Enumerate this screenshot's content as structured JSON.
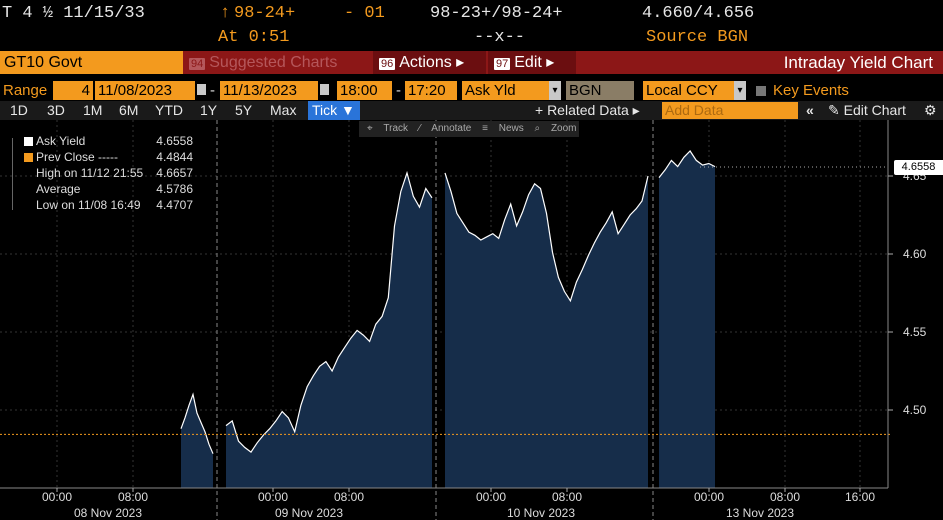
{
  "quote": {
    "security": "T 4 ½ 11/15/33",
    "price_arrow": "↑",
    "price": "98-24+",
    "change": "- 01",
    "bid_ask": "98-23+/98-24+",
    "yields": "4.660/4.656",
    "time_label": "At 0:51",
    "size": "--x--",
    "source": "Source BGN"
  },
  "titlebar": {
    "ticker": "GT10 Govt",
    "suggested_num": "94",
    "suggested_label": "Suggested Charts",
    "actions_num": "96",
    "actions_label": "Actions ▸",
    "edit_num": "97",
    "edit_label": "Edit ▸",
    "chart_title": "Intraday Yield Chart"
  },
  "rangebar": {
    "range_label": "Range",
    "range_value": "4",
    "start_date": "11/08/2023",
    "end_date": "11/13/2023",
    "start_time": "18:00",
    "end_time": "17:20",
    "market_field": "Ask Yld",
    "source": "BGN",
    "currency": "Local CCY",
    "key_events": "Key Events",
    "dash": "-"
  },
  "periodbar": {
    "periods": [
      "1D",
      "3D",
      "1M",
      "6M",
      "YTD",
      "1Y",
      "5Y",
      "Max"
    ],
    "tick": "Tick ▼",
    "related": "+ Related Data ▸",
    "add_data_placeholder": "Add Data",
    "edit_chart": "Edit Chart"
  },
  "tools": [
    "Track",
    "Annotate",
    "News",
    "Zoom"
  ],
  "legend": [
    {
      "name": "Ask Yield",
      "value": "4.6558",
      "color": "#ffffff"
    },
    {
      "name": "Prev Close -----",
      "value": "4.4844",
      "color": "#f39a1e"
    },
    {
      "name": "High on 11/12 21:55",
      "value": "4.6657",
      "color": "#999999"
    },
    {
      "name": "Average",
      "value": "4.5786",
      "color": "#999999"
    },
    {
      "name": "Low on 11/08 16:49",
      "value": "4.4707",
      "color": "#999999"
    }
  ],
  "chart_data": {
    "type": "area",
    "title": "Intraday Yield Chart",
    "ylim": [
      4.45,
      4.675
    ],
    "y_ticks": [
      4.5,
      4.55,
      4.6,
      4.65
    ],
    "y_tick_labels": [
      "4.50",
      "4.55",
      "4.60",
      "4.65"
    ],
    "prev_close": 4.4844,
    "last_value": 4.6558,
    "last_label": "4.6558",
    "time_ticks": [
      "00:00",
      "08:00",
      "00:00",
      "08:00",
      "00:00",
      "08:00",
      "00:00",
      "08:00",
      "16:00"
    ],
    "day_labels": [
      "08 Nov 2023",
      "09 Nov 2023",
      "10 Nov 2023",
      "13 Nov 2023"
    ],
    "grid": true,
    "series": [
      {
        "name": "Ask Yield",
        "segments": [
          {
            "day": "08 Nov 2023",
            "values": [
              4.488,
              4.495,
              4.503,
              4.51,
              4.498,
              4.492,
              4.486,
              4.478,
              4.472
            ]
          },
          {
            "day": "09 Nov 2023",
            "values": [
              4.49,
              4.493,
              4.48,
              4.476,
              4.473,
              4.479,
              4.484,
              4.488,
              4.493,
              4.499,
              4.495,
              4.486,
              4.503,
              4.515,
              4.522,
              4.528,
              4.531,
              4.525,
              4.534,
              4.54,
              4.546,
              4.551,
              4.548,
              4.544,
              4.555,
              4.56,
              4.572,
              4.618,
              4.64,
              4.652,
              4.637,
              4.63,
              4.642,
              4.636
            ]
          },
          {
            "day": "10 Nov 2023",
            "values": [
              4.652,
              4.64,
              4.626,
              4.62,
              4.614,
              4.612,
              4.609,
              4.611,
              4.613,
              4.61,
              4.622,
              4.632,
              4.618,
              4.627,
              4.638,
              4.645,
              4.642,
              4.626,
              4.601,
              4.585,
              4.576,
              4.57,
              4.582,
              4.59,
              4.599,
              4.607,
              4.614,
              4.62,
              4.627,
              4.613,
              4.619,
              4.625,
              4.629,
              4.634,
              4.65
            ]
          },
          {
            "day": "13 Nov 2023",
            "values": [
              4.649,
              4.654,
              4.66,
              4.656,
              4.662,
              4.666,
              4.66,
              4.657,
              4.658,
              4.656
            ]
          }
        ]
      }
    ]
  },
  "colors": {
    "accent_orange": "#f39a1e",
    "title_red": "#8c1717",
    "area_fill": "#162d4a",
    "line": "#ffffff",
    "tick_blue": "#2a74d9"
  }
}
